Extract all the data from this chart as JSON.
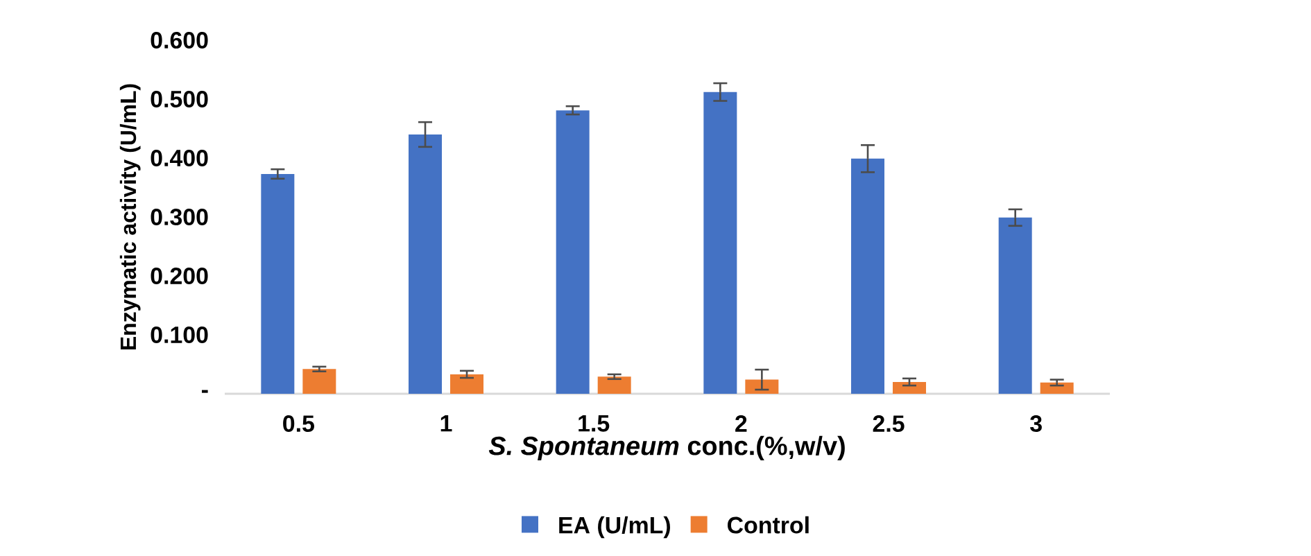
{
  "chart_data": {
    "type": "bar",
    "xlabel": "*S. Spontaneum* conc.(%,w/v)",
    "ylabel": "Enzymatic activity (U/mL)",
    "categories": [
      "0.5",
      "1",
      "1.5",
      "2",
      "2.5",
      "3"
    ],
    "series": [
      {
        "name": "EA (U/mL)",
        "color": "#4472c4",
        "values": [
          0.373,
          0.44,
          0.481,
          0.512,
          0.399,
          0.299
        ],
        "errors": [
          0.008,
          0.021,
          0.007,
          0.015,
          0.023,
          0.014
        ]
      },
      {
        "name": "Control",
        "color": "#ed7d31",
        "values": [
          0.042,
          0.033,
          0.029,
          0.024,
          0.02,
          0.019
        ],
        "errors": [
          0.004,
          0.006,
          0.004,
          0.017,
          0.006,
          0.005
        ]
      }
    ],
    "ylim": [
      0,
      0.6
    ],
    "yticks": [
      {
        "value": 0,
        "label": "-"
      },
      {
        "value": 0.1,
        "label": "0.100"
      },
      {
        "value": 0.2,
        "label": "0.200"
      },
      {
        "value": 0.3,
        "label": "0.300"
      },
      {
        "value": 0.4,
        "label": "0.400"
      },
      {
        "value": 0.5,
        "label": "0.500"
      },
      {
        "value": 0.6,
        "label": "0.600"
      }
    ],
    "grid": false,
    "legend": "bottom"
  }
}
